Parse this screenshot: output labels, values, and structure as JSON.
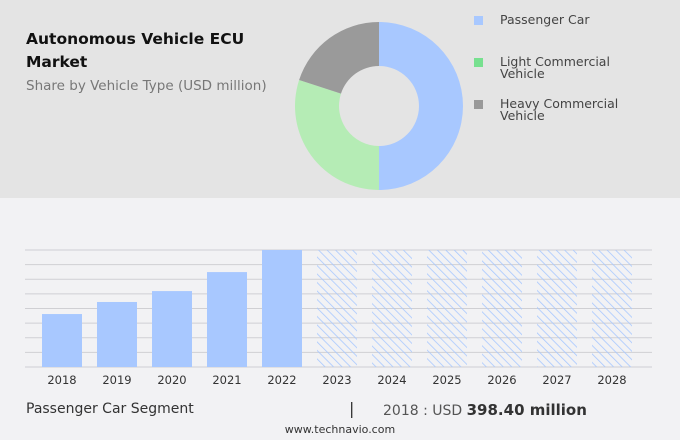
{
  "title": "Autonomous Vehicle ECU Market",
  "subtitle": "Share by Vehicle Type (USD million)",
  "chart_data": [
    {
      "type": "pie",
      "variant": "donut",
      "labels": [
        "Passenger Car",
        "Light Commercial Vehicle",
        "Heavy Commercial Vehicle"
      ],
      "values": [
        50,
        30,
        20
      ],
      "colors": [
        "#a8c8ff",
        "#b5ecb5",
        "#9a9a9a"
      ],
      "legend_colors": [
        "#a8c8ff",
        "#77e08f",
        "#999999"
      ],
      "legend": "right"
    },
    {
      "type": "bar",
      "categories": [
        "2018",
        "2019",
        "2020",
        "2021",
        "2022",
        "2023",
        "2024",
        "2025",
        "2026",
        "2027",
        "2028"
      ],
      "values": [
        398.4,
        489,
        571,
        714,
        880,
        null,
        null,
        null,
        null,
        null,
        null
      ],
      "forecast_categories": [
        "2023",
        "2024",
        "2025",
        "2026",
        "2027",
        "2028"
      ],
      "ylim": [
        0,
        880
      ],
      "grid": true,
      "bar_color": "#a8c8ff"
    }
  ],
  "footer": {
    "segment": "Passenger Car Segment",
    "separator": "|",
    "year_label": "2018 : USD",
    "value": "398.40 million",
    "site": "www.technavio.com"
  }
}
